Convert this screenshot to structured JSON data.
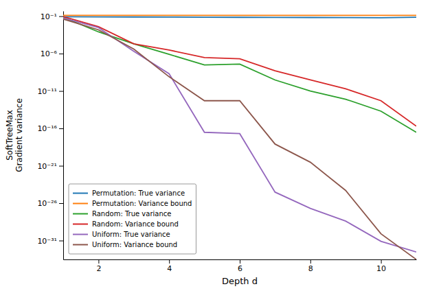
{
  "chart_data": {
    "type": "line",
    "log": "y",
    "xlabel": "Depth d",
    "ylabel": "SoftTreeMax\nGradient variance",
    "x": [
      1,
      2,
      3,
      4,
      5,
      6,
      7,
      8,
      9,
      10,
      11
    ],
    "series": [
      {
        "name": "Permutation: True variance",
        "color": "#1f77b4",
        "values": [
          0.085,
          0.082,
          0.079,
          0.076,
          0.073,
          0.071,
          0.069,
          0.067,
          0.065,
          0.063,
          0.072
        ]
      },
      {
        "name": "Permutation: Variance bound",
        "color": "#ff7f0e",
        "values": [
          0.13,
          0.13,
          0.13,
          0.13,
          0.13,
          0.13,
          0.13,
          0.13,
          0.13,
          0.13,
          0.13
        ]
      },
      {
        "name": "Random: True variance",
        "color": "#2ca02c",
        "values": [
          0.075,
          0.0008,
          2e-05,
          8e-07,
          3e-08,
          4e-08,
          3e-10,
          1e-11,
          8e-13,
          2e-14,
          3e-17
        ]
      },
      {
        "name": "Random: Variance bound",
        "color": "#d62728",
        "values": [
          0.09,
          0.004,
          2e-05,
          3e-06,
          3e-07,
          2e-07,
          5e-09,
          3e-10,
          2e-11,
          5e-13,
          2e-16
        ]
      },
      {
        "name": "Uniform: True variance",
        "color": "#9467bd",
        "values": [
          0.06,
          0.003,
          2e-06,
          2e-09,
          3e-17,
          2e-17,
          3e-25,
          2e-27,
          4e-29,
          8e-32,
          3e-33
        ]
      },
      {
        "name": "Uniform: Variance bound",
        "color": "#8c564b",
        "values": [
          0.042,
          0.0015,
          4e-06,
          8e-10,
          5e-13,
          5e-13,
          8e-19,
          3e-21,
          5e-25,
          8e-31,
          3e-34
        ]
      }
    ],
    "xlim": [
      1,
      11
    ],
    "ylim": [
      3e-34,
      0.5
    ],
    "xticks": [
      2,
      4,
      6,
      8,
      10
    ],
    "yticks": [
      {
        "value": 0.1,
        "label": "10⁻¹"
      },
      {
        "value": 1e-06,
        "label": "10⁻⁶"
      },
      {
        "value": 1e-11,
        "label": "10⁻¹¹"
      },
      {
        "value": 1e-16,
        "label": "10⁻¹⁶"
      },
      {
        "value": 1e-21,
        "label": "10⁻²¹"
      },
      {
        "value": 1e-26,
        "label": "10⁻²⁶"
      },
      {
        "value": 1e-31,
        "label": "10⁻³¹"
      }
    ],
    "legend": "lower left",
    "grid": false
  }
}
